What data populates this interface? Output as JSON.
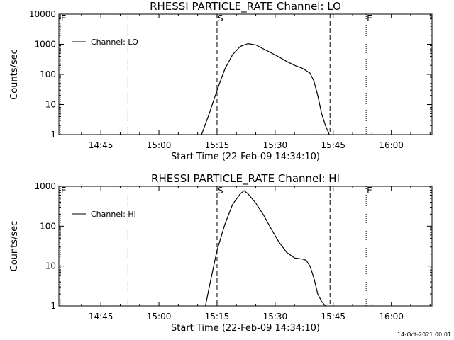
{
  "chart_data": [
    {
      "type": "line",
      "title": "RHESSI PARTICLE_RATE Channel: LO",
      "xlabel": "Start Time (22-Feb-09 14:34:10)",
      "ylabel": "Counts/sec",
      "y_scale": "log",
      "ylim": [
        1,
        10000
      ],
      "xlim": [
        "14:34:10",
        "16:10:30"
      ],
      "x_ticks": [
        "14:45",
        "15:00",
        "15:15",
        "15:30",
        "15:45",
        "16:00"
      ],
      "y_ticks": [
        "1",
        "10",
        "100",
        "1000",
        "10000"
      ],
      "legend": "top-left",
      "series": [
        {
          "name": "Channel: LO",
          "x": [
            "15:11",
            "15:13",
            "15:15",
            "15:17",
            "15:19",
            "15:21",
            "15:23",
            "15:25",
            "15:27",
            "15:29",
            "15:31",
            "15:33",
            "15:35",
            "15:37",
            "15:39",
            "15:40",
            "15:41",
            "15:42",
            "15:43",
            "15:44"
          ],
          "y": [
            1,
            5,
            30,
            150,
            450,
            850,
            1050,
            950,
            700,
            520,
            380,
            270,
            200,
            160,
            110,
            60,
            20,
            5,
            2,
            1
          ]
        }
      ],
      "event_markers": [
        {
          "label": "E",
          "time": "14:34:30",
          "style": "dotted"
        },
        {
          "label": "",
          "time": "14:52:00",
          "style": "dotted"
        },
        {
          "label": "S",
          "time": "15:15:00",
          "style": "dashed"
        },
        {
          "label": "",
          "time": "15:44:10",
          "style": "dashed"
        },
        {
          "label": "E",
          "time": "15:53:30",
          "style": "dotted"
        },
        {
          "label": "",
          "time": "16:10:30",
          "style": "dotted"
        }
      ]
    },
    {
      "type": "line",
      "title": "RHESSI PARTICLE_RATE Channel: HI",
      "xlabel": "Start Time (22-Feb-09 14:34:10)",
      "ylabel": "Counts/sec",
      "y_scale": "log",
      "ylim": [
        1,
        1000
      ],
      "xlim": [
        "14:34:10",
        "16:10:30"
      ],
      "x_ticks": [
        "14:45",
        "15:00",
        "15:15",
        "15:30",
        "15:45",
        "16:00"
      ],
      "y_ticks": [
        "1",
        "10",
        "100",
        "1000"
      ],
      "legend": "top-left",
      "series": [
        {
          "name": "Channel: HI",
          "x": [
            "15:12",
            "15:13",
            "15:15",
            "15:17",
            "15:19",
            "15:21",
            "15:22",
            "15:23",
            "15:25",
            "15:27",
            "15:29",
            "15:31",
            "15:33",
            "15:35",
            "15:37",
            "15:38",
            "15:39",
            "15:40",
            "15:41",
            "15:42",
            "15:43"
          ],
          "y": [
            1,
            3,
            25,
            110,
            350,
            650,
            780,
            650,
            380,
            190,
            85,
            40,
            22,
            16,
            15,
            14,
            10,
            5,
            2,
            1.3,
            1
          ]
        }
      ],
      "event_markers": [
        {
          "label": "E",
          "time": "14:34:30",
          "style": "dotted"
        },
        {
          "label": "",
          "time": "14:52:00",
          "style": "dotted"
        },
        {
          "label": "S",
          "time": "15:15:00",
          "style": "dashed"
        },
        {
          "label": "",
          "time": "15:44:10",
          "style": "dashed"
        },
        {
          "label": "E",
          "time": "15:53:30",
          "style": "dotted"
        },
        {
          "label": "",
          "time": "16:10:30",
          "style": "dotted"
        }
      ]
    }
  ],
  "footer": {
    "timestamp": "14-Oct-2021 00:01"
  }
}
